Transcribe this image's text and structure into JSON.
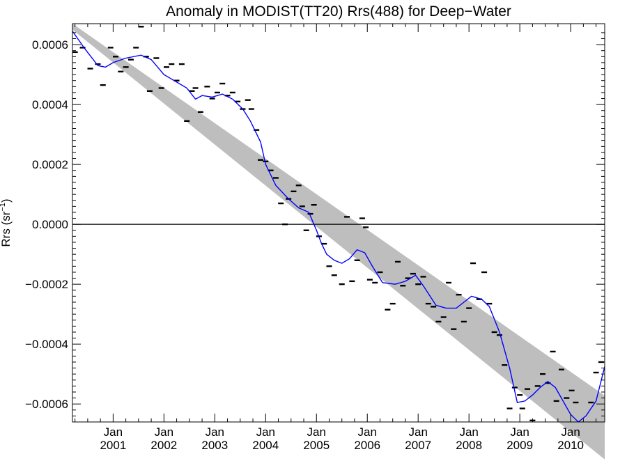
{
  "chart_data": {
    "type": "line",
    "title": "Anomaly in MODIST(TT20) Rrs(488) for Deep−Water",
    "ylabel_main": "Rrs (sr",
    "ylabel_sup": "−1",
    "ylabel_tail": ")",
    "xlim": [
      2000.2,
      2010.67
    ],
    "ylim": [
      -0.00066,
      0.00067
    ],
    "x_ticks": [
      {
        "x": 2001.0,
        "month": "Jan",
        "year": "2001"
      },
      {
        "x": 2002.0,
        "month": "Jan",
        "year": "2002"
      },
      {
        "x": 2003.0,
        "month": "Jan",
        "year": "2003"
      },
      {
        "x": 2004.0,
        "month": "Jan",
        "year": "2004"
      },
      {
        "x": 2005.0,
        "month": "Jan",
        "year": "2005"
      },
      {
        "x": 2006.0,
        "month": "Jan",
        "year": "2006"
      },
      {
        "x": 2007.0,
        "month": "Jan",
        "year": "2007"
      },
      {
        "x": 2008.0,
        "month": "Jan",
        "year": "2008"
      },
      {
        "x": 2009.0,
        "month": "Jan",
        "year": "2009"
      },
      {
        "x": 2010.0,
        "month": "Jan",
        "year": "2010"
      }
    ],
    "y_ticks": [
      {
        "value": 0.0006,
        "label": "0.0006"
      },
      {
        "value": 0.0004,
        "label": "0.0004"
      },
      {
        "value": 0.0002,
        "label": "0.0002"
      },
      {
        "value": 0.0,
        "label": "0.0000"
      },
      {
        "value": -0.0002,
        "label": "−0.0002"
      },
      {
        "value": -0.0004,
        "label": "−0.0004"
      },
      {
        "value": -0.0006,
        "label": "−0.0006"
      }
    ],
    "zero_line": 0.0,
    "trend_band": {
      "start": {
        "x": 2000.2,
        "upper": 0.00067,
        "lower": 0.00065
      },
      "end": {
        "x": 2010.67,
        "upper": -0.000572,
        "lower": -0.000785
      },
      "color": "#bebebe"
    },
    "smooth_series": {
      "color": "#0000ff",
      "points": [
        [
          2000.2,
          0.000645
        ],
        [
          2000.45,
          0.000585
        ],
        [
          2000.7,
          0.00053
        ],
        [
          2000.85,
          0.000525
        ],
        [
          2001.0,
          0.00054
        ],
        [
          2001.25,
          0.000555
        ],
        [
          2001.55,
          0.000565
        ],
        [
          2001.75,
          0.00055
        ],
        [
          2002.0,
          0.0005
        ],
        [
          2002.2,
          0.00048
        ],
        [
          2002.45,
          0.000455
        ],
        [
          2002.62,
          0.000418
        ],
        [
          2002.75,
          0.00043
        ],
        [
          2002.95,
          0.000425
        ],
        [
          2003.15,
          0.000435
        ],
        [
          2003.35,
          0.000418
        ],
        [
          2003.55,
          0.000385
        ],
        [
          2003.7,
          0.000345
        ],
        [
          2003.9,
          0.000275
        ],
        [
          2004.0,
          0.0002
        ],
        [
          2004.2,
          0.00013
        ],
        [
          2004.45,
          8.5e-05
        ],
        [
          2004.65,
          5.5e-05
        ],
        [
          2004.85,
          4e-05
        ],
        [
          2005.0,
          -2e-05
        ],
        [
          2005.1,
          -6.5e-05
        ],
        [
          2005.2,
          -0.0001
        ],
        [
          2005.35,
          -0.00012
        ],
        [
          2005.5,
          -0.00013
        ],
        [
          2005.65,
          -0.000115
        ],
        [
          2005.8,
          -8.5e-05
        ],
        [
          2005.95,
          -9.5e-05
        ],
        [
          2006.1,
          -0.00014
        ],
        [
          2006.3,
          -0.000195
        ],
        [
          2006.55,
          -0.0002
        ],
        [
          2006.75,
          -0.00019
        ],
        [
          2006.95,
          -0.00017
        ],
        [
          2007.1,
          -0.000205
        ],
        [
          2007.35,
          -0.00027
        ],
        [
          2007.55,
          -0.00028
        ],
        [
          2007.75,
          -0.00028
        ],
        [
          2007.9,
          -0.00026
        ],
        [
          2008.05,
          -0.00024
        ],
        [
          2008.25,
          -0.00025
        ],
        [
          2008.4,
          -0.000275
        ],
        [
          2008.6,
          -0.00036
        ],
        [
          2008.8,
          -0.00048
        ],
        [
          2008.95,
          -0.000595
        ],
        [
          2009.1,
          -0.00059
        ],
        [
          2009.25,
          -0.00057
        ],
        [
          2009.4,
          -0.000545
        ],
        [
          2009.55,
          -0.000525
        ],
        [
          2009.7,
          -0.000545
        ],
        [
          2009.85,
          -0.00059
        ],
        [
          2010.0,
          -0.000635
        ],
        [
          2010.15,
          -0.00066
        ],
        [
          2010.3,
          -0.00064
        ],
        [
          2010.5,
          -0.00059
        ],
        [
          2010.67,
          -0.000475
        ]
      ]
    },
    "monthly_points": [
      [
        2000.25,
        0.000575
      ],
      [
        2000.4,
        0.00059
      ],
      [
        2000.55,
        0.00052
      ],
      [
        2000.7,
        0.000535
      ],
      [
        2000.8,
        0.000465
      ],
      [
        2000.95,
        0.00059
      ],
      [
        2001.05,
        0.00056
      ],
      [
        2001.15,
        0.00051
      ],
      [
        2001.25,
        0.000525
      ],
      [
        2001.35,
        0.00055
      ],
      [
        2001.45,
        0.00059
      ],
      [
        2001.55,
        0.00066
      ],
      [
        2001.65,
        0.00056
      ],
      [
        2001.72,
        0.000445
      ],
      [
        2001.85,
        0.000555
      ],
      [
        2001.95,
        0.000455
      ],
      [
        2002.05,
        0.000525
      ],
      [
        2002.15,
        0.000535
      ],
      [
        2002.25,
        0.00048
      ],
      [
        2002.35,
        0.000535
      ],
      [
        2002.45,
        0.000345
      ],
      [
        2002.55,
        0.000445
      ],
      [
        2002.62,
        0.000455
      ],
      [
        2002.72,
        0.000375
      ],
      [
        2002.85,
        0.00046
      ],
      [
        2002.95,
        0.00042
      ],
      [
        2003.05,
        0.00044
      ],
      [
        2003.15,
        0.00047
      ],
      [
        2003.25,
        0.00043
      ],
      [
        2003.35,
        0.00044
      ],
      [
        2003.45,
        0.00041
      ],
      [
        2003.55,
        0.000385
      ],
      [
        2003.65,
        0.000415
      ],
      [
        2003.72,
        0.000385
      ],
      [
        2003.82,
        0.000315
      ],
      [
        2003.9,
        0.000215
      ],
      [
        2004.0,
        0.00021
      ],
      [
        2004.1,
        0.00018
      ],
      [
        2004.2,
        0.000155
      ],
      [
        2004.3,
        7e-05
      ],
      [
        2004.38,
        0.0
      ],
      [
        2004.45,
        8.5e-05
      ],
      [
        2004.55,
        0.00011
      ],
      [
        2004.65,
        0.00013
      ],
      [
        2004.72,
        6e-05
      ],
      [
        2004.8,
        -2e-05
      ],
      [
        2004.88,
        3.5e-05
      ],
      [
        2004.95,
        6.5e-05
      ],
      [
        2005.05,
        -4e-05
      ],
      [
        2005.15,
        -6.5e-05
      ],
      [
        2005.25,
        -0.00014
      ],
      [
        2005.35,
        -0.00017
      ],
      [
        2005.5,
        -0.0002
      ],
      [
        2005.6,
        2.5e-05
      ],
      [
        2005.7,
        -0.00019
      ],
      [
        2005.8,
        -0.00012
      ],
      [
        2005.9,
        2e-05
      ],
      [
        2005.97,
        -1e-05
      ],
      [
        2006.05,
        -0.000185
      ],
      [
        2006.15,
        -0.000195
      ],
      [
        2006.25,
        -0.00016
      ],
      [
        2006.4,
        -0.000285
      ],
      [
        2006.5,
        -0.000265
      ],
      [
        2006.6,
        -0.000125
      ],
      [
        2006.7,
        -0.000205
      ],
      [
        2006.8,
        -0.00018
      ],
      [
        2006.9,
        -0.000165
      ],
      [
        2007.0,
        -0.0002
      ],
      [
        2007.1,
        -0.000175
      ],
      [
        2007.2,
        -0.000265
      ],
      [
        2007.3,
        -0.000275
      ],
      [
        2007.4,
        -0.000325
      ],
      [
        2007.5,
        -0.00031
      ],
      [
        2007.6,
        -0.000195
      ],
      [
        2007.7,
        -0.00035
      ],
      [
        2007.8,
        -0.000235
      ],
      [
        2007.9,
        -0.000325
      ],
      [
        2008.0,
        -0.00028
      ],
      [
        2008.08,
        -0.00013
      ],
      [
        2008.2,
        -0.00025
      ],
      [
        2008.3,
        -0.00016
      ],
      [
        2008.4,
        -0.000265
      ],
      [
        2008.5,
        -0.00036
      ],
      [
        2008.6,
        -0.00037
      ],
      [
        2008.7,
        -0.00047
      ],
      [
        2008.8,
        -0.000615
      ],
      [
        2008.9,
        -0.000545
      ],
      [
        2009.0,
        -0.00057
      ],
      [
        2009.05,
        -0.000615
      ],
      [
        2009.15,
        -0.00055
      ],
      [
        2009.25,
        -0.000655
      ],
      [
        2009.35,
        -0.00054
      ],
      [
        2009.45,
        -0.0005
      ],
      [
        2009.55,
        -0.00053
      ],
      [
        2009.65,
        -0.000425
      ],
      [
        2009.72,
        -0.00059
      ],
      [
        2009.82,
        -0.000485
      ],
      [
        2009.92,
        -0.00058
      ],
      [
        2010.02,
        -0.000555
      ],
      [
        2010.1,
        -0.000595
      ],
      [
        2010.4,
        -0.000595
      ],
      [
        2010.5,
        -0.000495
      ],
      [
        2010.6,
        -0.00046
      ]
    ]
  }
}
